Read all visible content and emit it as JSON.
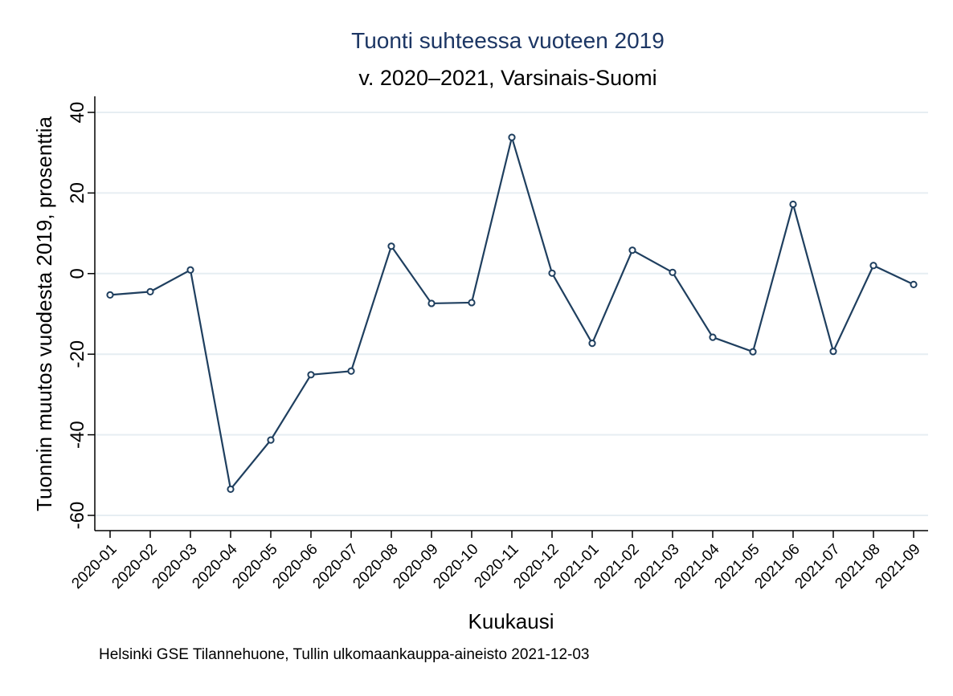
{
  "chart_data": {
    "type": "line",
    "title": "Tuonti suhteessa vuoteen 2019",
    "subtitle": "v. 2020–2021, Varsinais-Suomi",
    "xlabel": "Kuukausi",
    "ylabel": "Tuonnin muutos vuodesta 2019, prosenttia",
    "note": "Helsinki GSE Tilannehuone, Tullin ulkomaankauppa-aineisto 2021-12-03",
    "categories": [
      "2020-01",
      "2020-02",
      "2020-03",
      "2020-04",
      "2020-05",
      "2020-06",
      "2020-07",
      "2020-08",
      "2020-09",
      "2020-10",
      "2020-11",
      "2020-12",
      "2021-01",
      "2021-02",
      "2021-03",
      "2021-04",
      "2021-05",
      "2021-06",
      "2021-07",
      "2021-08",
      "2021-09"
    ],
    "series": [
      {
        "values": [
          -5.3,
          -4.5,
          0.9,
          -53.5,
          -41.3,
          -25.1,
          -24.2,
          6.8,
          -7.4,
          -7.2,
          33.8,
          0.1,
          -17.3,
          5.8,
          0.3,
          -15.8,
          -19.4,
          17.2,
          -19.3,
          2.0,
          -2.7
        ],
        "color": "#1f3f5f"
      }
    ],
    "yticks": [
      -60,
      -40,
      -20,
      0,
      20,
      40
    ],
    "ylim": [
      -63,
      44
    ],
    "grid": true,
    "colors": {
      "title": "#1c3664",
      "line": "#1f3f5f",
      "grid": "#e6eef2",
      "axis": "#000000"
    }
  }
}
